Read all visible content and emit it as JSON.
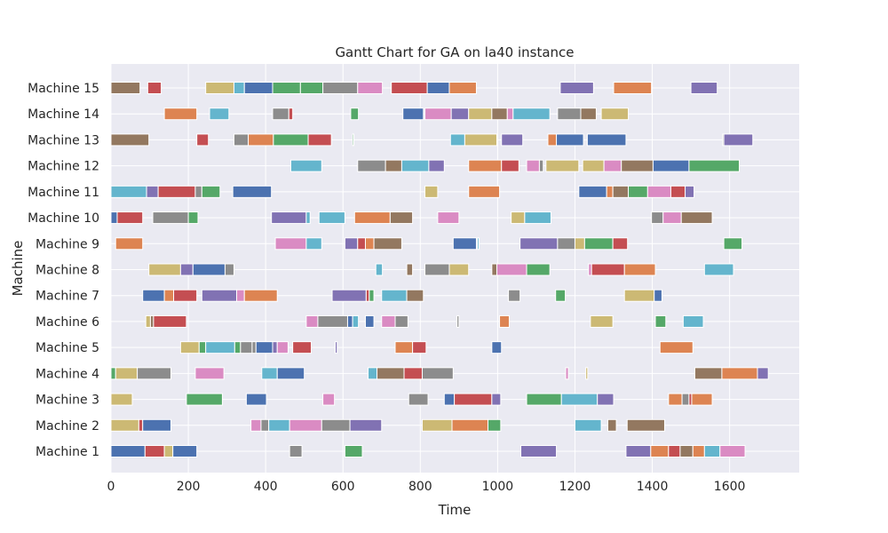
{
  "chart_data": {
    "type": "gantt",
    "title": "Gantt Chart for GA on la40 instance",
    "xlabel": "Time",
    "ylabel": "Machine",
    "xlim": [
      0,
      1780
    ],
    "xticks": [
      0,
      200,
      400,
      600,
      800,
      1000,
      1200,
      1400,
      1600
    ],
    "grid": true,
    "colors": {
      "blue": "#4c72b0",
      "orange": "#dd8452",
      "green": "#55a868",
      "red": "#c44e52",
      "purple": "#8172b3",
      "brown": "#937860",
      "pink": "#da8bc3",
      "gray": "#8c8c8c",
      "olive": "#ccb974",
      "cyan": "#64b5cd"
    },
    "machines": [
      {
        "label": "Machine 1",
        "tasks": [
          [
            0,
            88,
            "blue"
          ],
          [
            88,
            138,
            "red"
          ],
          [
            138,
            160,
            "olive"
          ],
          [
            160,
            222,
            "blue"
          ],
          [
            462,
            494,
            "gray"
          ],
          [
            605,
            650,
            "green"
          ],
          [
            1060,
            1152,
            "purple"
          ],
          [
            1332,
            1396,
            "purple"
          ],
          [
            1396,
            1442,
            "orange"
          ],
          [
            1442,
            1472,
            "red"
          ],
          [
            1472,
            1505,
            "brown"
          ],
          [
            1505,
            1535,
            "orange"
          ],
          [
            1535,
            1575,
            "cyan"
          ],
          [
            1575,
            1640,
            "pink"
          ]
        ]
      },
      {
        "label": "Machine 2",
        "tasks": [
          [
            0,
            72,
            "olive"
          ],
          [
            72,
            82,
            "red"
          ],
          [
            82,
            155,
            "blue"
          ],
          [
            362,
            388,
            "pink"
          ],
          [
            388,
            408,
            "gray"
          ],
          [
            408,
            462,
            "cyan"
          ],
          [
            462,
            545,
            "pink"
          ],
          [
            545,
            618,
            "gray"
          ],
          [
            618,
            700,
            "purple"
          ],
          [
            805,
            882,
            "olive"
          ],
          [
            882,
            975,
            "orange"
          ],
          [
            975,
            1008,
            "green"
          ],
          [
            1200,
            1268,
            "cyan"
          ],
          [
            1285,
            1307,
            "brown"
          ],
          [
            1335,
            1432,
            "brown"
          ]
        ]
      },
      {
        "label": "Machine 3",
        "tasks": [
          [
            0,
            55,
            "olive"
          ],
          [
            195,
            288,
            "green"
          ],
          [
            350,
            402,
            "blue"
          ],
          [
            548,
            578,
            "pink"
          ],
          [
            770,
            820,
            "gray"
          ],
          [
            862,
            888,
            "blue"
          ],
          [
            888,
            985,
            "red"
          ],
          [
            985,
            1008,
            "purple"
          ],
          [
            1075,
            1165,
            "green"
          ],
          [
            1165,
            1258,
            "cyan"
          ],
          [
            1258,
            1300,
            "purple"
          ],
          [
            1442,
            1477,
            "orange"
          ],
          [
            1477,
            1495,
            "gray"
          ],
          [
            1495,
            1502,
            "red"
          ],
          [
            1502,
            1555,
            "orange"
          ]
        ]
      },
      {
        "label": "Machine 4",
        "tasks": [
          [
            0,
            12,
            "green"
          ],
          [
            12,
            68,
            "olive"
          ],
          [
            68,
            155,
            "gray"
          ],
          [
            218,
            292,
            "pink"
          ],
          [
            390,
            430,
            "cyan"
          ],
          [
            430,
            500,
            "blue"
          ],
          [
            665,
            688,
            "cyan"
          ],
          [
            688,
            758,
            "brown"
          ],
          [
            758,
            805,
            "red"
          ],
          [
            805,
            885,
            "gray"
          ],
          [
            1176,
            1183,
            "pink"
          ],
          [
            1228,
            1233,
            "olive"
          ],
          [
            1510,
            1580,
            "brown"
          ],
          [
            1580,
            1672,
            "orange"
          ],
          [
            1672,
            1700,
            "purple"
          ]
        ]
      },
      {
        "label": "Machine 5",
        "tasks": [
          [
            180,
            228,
            "olive"
          ],
          [
            228,
            245,
            "green"
          ],
          [
            245,
            320,
            "cyan"
          ],
          [
            320,
            335,
            "green"
          ],
          [
            335,
            365,
            "gray"
          ],
          [
            365,
            375,
            "gray"
          ],
          [
            375,
            418,
            "blue"
          ],
          [
            418,
            430,
            "purple"
          ],
          [
            430,
            458,
            "pink"
          ],
          [
            470,
            518,
            "red"
          ],
          [
            580,
            585,
            "purple"
          ],
          [
            735,
            780,
            "orange"
          ],
          [
            780,
            815,
            "red"
          ],
          [
            985,
            1010,
            "blue"
          ],
          [
            1420,
            1505,
            "orange"
          ]
        ]
      },
      {
        "label": "Machine 6",
        "tasks": [
          [
            90,
            102,
            "olive"
          ],
          [
            102,
            110,
            "brown"
          ],
          [
            110,
            195,
            "red"
          ],
          [
            505,
            535,
            "pink"
          ],
          [
            535,
            612,
            "gray"
          ],
          [
            612,
            625,
            "blue"
          ],
          [
            625,
            640,
            "cyan"
          ],
          [
            658,
            680,
            "blue"
          ],
          [
            700,
            735,
            "pink"
          ],
          [
            735,
            768,
            "gray"
          ],
          [
            895,
            900,
            "gray"
          ],
          [
            1005,
            1030,
            "orange"
          ],
          [
            1240,
            1298,
            "olive"
          ],
          [
            1408,
            1435,
            "green"
          ],
          [
            1480,
            1532,
            "cyan"
          ]
        ]
      },
      {
        "label": "Machine 7",
        "tasks": [
          [
            82,
            138,
            "blue"
          ],
          [
            138,
            162,
            "orange"
          ],
          [
            162,
            222,
            "red"
          ],
          [
            235,
            325,
            "purple"
          ],
          [
            325,
            345,
            "pink"
          ],
          [
            345,
            430,
            "orange"
          ],
          [
            572,
            660,
            "purple"
          ],
          [
            660,
            668,
            "red"
          ],
          [
            668,
            680,
            "green"
          ],
          [
            700,
            765,
            "cyan"
          ],
          [
            765,
            808,
            "brown"
          ],
          [
            1028,
            1058,
            "gray"
          ],
          [
            1150,
            1175,
            "green"
          ],
          [
            1328,
            1405,
            "olive"
          ],
          [
            1405,
            1425,
            "blue"
          ]
        ]
      },
      {
        "label": "Machine 8",
        "tasks": [
          [
            98,
            180,
            "olive"
          ],
          [
            180,
            212,
            "purple"
          ],
          [
            212,
            295,
            "blue"
          ],
          [
            295,
            318,
            "gray"
          ],
          [
            685,
            702,
            "cyan"
          ],
          [
            765,
            780,
            "brown"
          ],
          [
            812,
            875,
            "gray"
          ],
          [
            875,
            925,
            "olive"
          ],
          [
            985,
            998,
            "brown"
          ],
          [
            998,
            1075,
            "pink"
          ],
          [
            1075,
            1135,
            "green"
          ],
          [
            1235,
            1243,
            "pink"
          ],
          [
            1243,
            1328,
            "red"
          ],
          [
            1328,
            1408,
            "orange"
          ],
          [
            1535,
            1610,
            "cyan"
          ]
        ]
      },
      {
        "label": "Machine 9",
        "tasks": [
          [
            12,
            82,
            "orange"
          ],
          [
            425,
            505,
            "pink"
          ],
          [
            505,
            545,
            "cyan"
          ],
          [
            605,
            638,
            "purple"
          ],
          [
            638,
            658,
            "red"
          ],
          [
            658,
            680,
            "orange"
          ],
          [
            680,
            752,
            "brown"
          ],
          [
            885,
            945,
            "blue"
          ],
          [
            948,
            952,
            "cyan"
          ],
          [
            1058,
            1155,
            "purple"
          ],
          [
            1155,
            1200,
            "gray"
          ],
          [
            1200,
            1225,
            "olive"
          ],
          [
            1225,
            1298,
            "green"
          ],
          [
            1298,
            1336,
            "red"
          ],
          [
            1585,
            1632,
            "green"
          ]
        ]
      },
      {
        "label": "Machine 10",
        "tasks": [
          [
            0,
            16,
            "blue"
          ],
          [
            16,
            82,
            "red"
          ],
          [
            108,
            200,
            "gray"
          ],
          [
            200,
            225,
            "green"
          ],
          [
            415,
            505,
            "purple"
          ],
          [
            505,
            515,
            "cyan"
          ],
          [
            538,
            605,
            "cyan"
          ],
          [
            630,
            722,
            "orange"
          ],
          [
            722,
            780,
            "brown"
          ],
          [
            845,
            900,
            "pink"
          ],
          [
            1035,
            1070,
            "olive"
          ],
          [
            1070,
            1138,
            "cyan"
          ],
          [
            1398,
            1428,
            "gray"
          ],
          [
            1428,
            1475,
            "pink"
          ],
          [
            1475,
            1555,
            "brown"
          ]
        ]
      },
      {
        "label": "Machine 11",
        "tasks": [
          [
            0,
            92,
            "cyan"
          ],
          [
            92,
            122,
            "purple"
          ],
          [
            122,
            218,
            "red"
          ],
          [
            218,
            235,
            "gray"
          ],
          [
            235,
            282,
            "green"
          ],
          [
            315,
            415,
            "blue"
          ],
          [
            812,
            845,
            "olive"
          ],
          [
            925,
            1005,
            "orange"
          ],
          [
            1210,
            1282,
            "blue"
          ],
          [
            1282,
            1298,
            "orange"
          ],
          [
            1298,
            1338,
            "brown"
          ],
          [
            1338,
            1388,
            "green"
          ],
          [
            1388,
            1448,
            "pink"
          ],
          [
            1448,
            1485,
            "red"
          ],
          [
            1485,
            1508,
            "purple"
          ]
        ]
      },
      {
        "label": "Machine 12",
        "tasks": [
          [
            465,
            545,
            "cyan"
          ],
          [
            638,
            710,
            "gray"
          ],
          [
            710,
            752,
            "brown"
          ],
          [
            752,
            822,
            "cyan"
          ],
          [
            822,
            862,
            "purple"
          ],
          [
            925,
            1010,
            "orange"
          ],
          [
            1010,
            1055,
            "red"
          ],
          [
            1075,
            1108,
            "pink"
          ],
          [
            1108,
            1118,
            "gray"
          ],
          [
            1125,
            1210,
            "olive"
          ],
          [
            1220,
            1275,
            "olive"
          ],
          [
            1275,
            1320,
            "pink"
          ],
          [
            1320,
            1402,
            "brown"
          ],
          [
            1402,
            1495,
            "blue"
          ],
          [
            1495,
            1625,
            "green"
          ]
        ]
      },
      {
        "label": "Machine 13",
        "tasks": [
          [
            0,
            98,
            "brown"
          ],
          [
            222,
            252,
            "red"
          ],
          [
            318,
            355,
            "gray"
          ],
          [
            355,
            420,
            "orange"
          ],
          [
            420,
            510,
            "green"
          ],
          [
            510,
            570,
            "red"
          ],
          [
            625,
            628,
            "green"
          ],
          [
            878,
            915,
            "cyan"
          ],
          [
            915,
            998,
            "olive"
          ],
          [
            1010,
            1065,
            "purple"
          ],
          [
            1130,
            1152,
            "orange"
          ],
          [
            1152,
            1222,
            "blue"
          ],
          [
            1232,
            1332,
            "blue"
          ],
          [
            1582,
            1585,
            "gray"
          ],
          [
            1585,
            1660,
            "purple"
          ]
        ]
      },
      {
        "label": "Machine 14",
        "tasks": [
          [
            138,
            222,
            "orange"
          ],
          [
            255,
            305,
            "cyan"
          ],
          [
            418,
            460,
            "gray"
          ],
          [
            460,
            470,
            "red"
          ],
          [
            620,
            640,
            "green"
          ],
          [
            755,
            808,
            "blue"
          ],
          [
            812,
            880,
            "pink"
          ],
          [
            880,
            925,
            "purple"
          ],
          [
            925,
            985,
            "olive"
          ],
          [
            985,
            1025,
            "brown"
          ],
          [
            1025,
            1040,
            "pink"
          ],
          [
            1040,
            1135,
            "cyan"
          ],
          [
            1155,
            1215,
            "gray"
          ],
          [
            1215,
            1255,
            "brown"
          ],
          [
            1268,
            1338,
            "olive"
          ]
        ]
      },
      {
        "label": "Machine 15",
        "tasks": [
          [
            0,
            75,
            "brown"
          ],
          [
            95,
            130,
            "red"
          ],
          [
            245,
            318,
            "olive"
          ],
          [
            318,
            345,
            "cyan"
          ],
          [
            345,
            418,
            "blue"
          ],
          [
            418,
            490,
            "green"
          ],
          [
            490,
            548,
            "green"
          ],
          [
            548,
            638,
            "gray"
          ],
          [
            638,
            702,
            "pink"
          ],
          [
            725,
            818,
            "red"
          ],
          [
            818,
            875,
            "blue"
          ],
          [
            875,
            945,
            "orange"
          ],
          [
            1162,
            1248,
            "purple"
          ],
          [
            1300,
            1398,
            "orange"
          ],
          [
            1500,
            1568,
            "purple"
          ]
        ]
      }
    ]
  }
}
